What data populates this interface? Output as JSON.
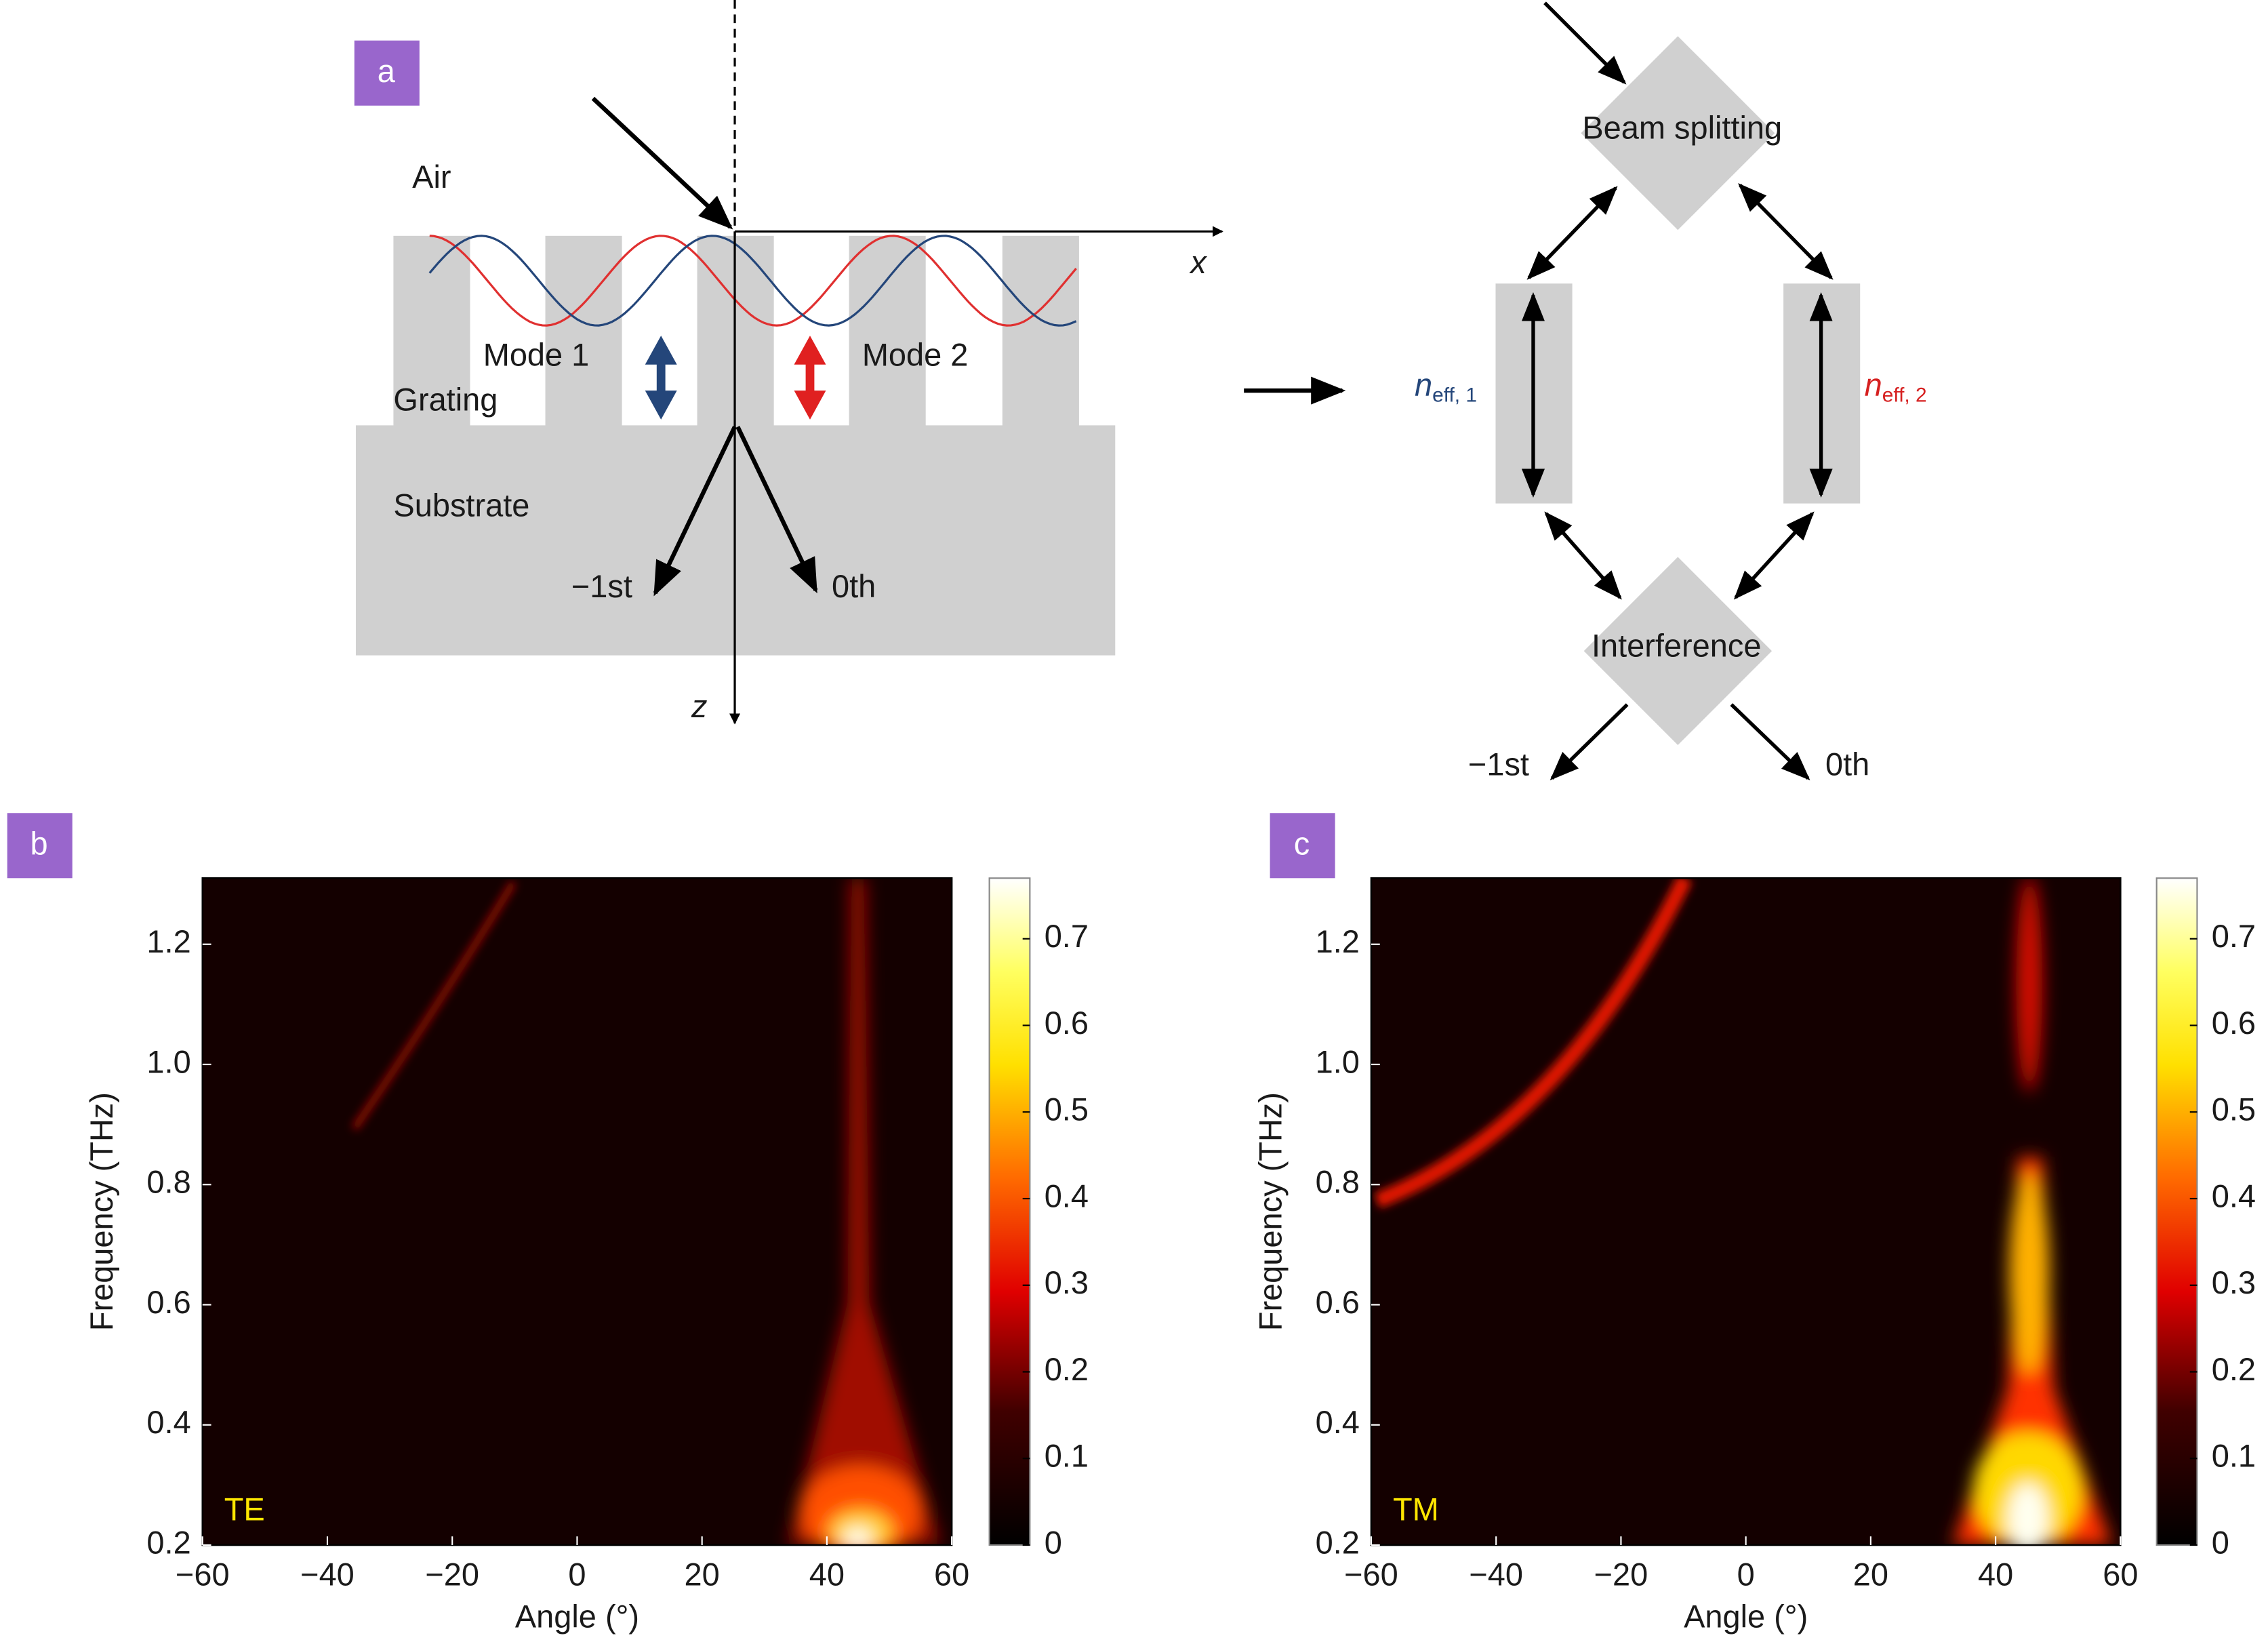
{
  "panel_a": {
    "label": "a",
    "air": "Air",
    "grating": "Grating",
    "substrate": "Substrate",
    "mode1": "Mode 1",
    "mode2": "Mode 2",
    "x_axis": "x",
    "z_axis": "z",
    "order_minus1": "−1st",
    "order_zero": "0th"
  },
  "flow": {
    "split": "Beam splitting",
    "interference": "Interference",
    "n1": {
      "symbol": "n",
      "sub": "eff, 1"
    },
    "n2": {
      "symbol": "n",
      "sub": "eff, 2"
    },
    "order_minus1": "−1st",
    "order_zero": "0th"
  },
  "chart_data": [
    {
      "type": "heatmap",
      "panel": "b",
      "label": "TE",
      "xlabel": "Angle (°)",
      "ylabel": "Frequency (THz)",
      "xlim": [
        -60,
        60
      ],
      "xticks": [
        {
          "value": -60,
          "label": "−60"
        },
        {
          "value": -40,
          "label": "−40"
        },
        {
          "value": -20,
          "label": "−20"
        },
        0,
        20,
        40,
        60
      ],
      "ylim": [
        0.2,
        1.31
      ],
      "yticks": [
        0.2,
        0.4,
        0.6,
        0.8,
        {
          "value": 1,
          "label": "1.0"
        },
        1.2
      ],
      "clim": [
        0,
        0.77
      ],
      "cticks": [
        0,
        0.1,
        0.2,
        0.3,
        0.4,
        0.5,
        0.6,
        0.7
      ]
    },
    {
      "type": "heatmap",
      "panel": "c",
      "label": "TM",
      "xlabel": "Angle (°)",
      "ylabel": "Frequency (THz)",
      "xlim": [
        -60,
        60
      ],
      "xticks": [
        {
          "value": -60,
          "label": "−60"
        },
        {
          "value": -40,
          "label": "−40"
        },
        {
          "value": -20,
          "label": "−20"
        },
        0,
        20,
        40,
        60
      ],
      "ylim": [
        0.2,
        1.31
      ],
      "yticks": [
        0.2,
        0.4,
        0.6,
        0.8,
        {
          "value": 1,
          "label": "1.0"
        },
        1.2
      ],
      "clim": [
        0,
        0.77
      ],
      "cticks": [
        0,
        0.1,
        0.2,
        0.3,
        0.4,
        0.5,
        0.6,
        0.7
      ]
    }
  ]
}
